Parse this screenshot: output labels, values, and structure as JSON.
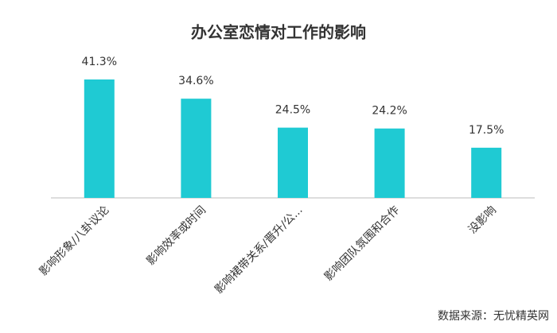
{
  "chart_data": {
    "type": "bar",
    "title": "办公室恋情对工作的影响",
    "categories": [
      "影响形象/八卦议论",
      "影响效率或时间",
      "影响裙带关系/晋升/公...",
      "影响团队氛围和合作",
      "没影响"
    ],
    "values": [
      41.3,
      34.6,
      24.5,
      24.2,
      17.5
    ],
    "value_labels": [
      "41.3%",
      "34.6%",
      "24.5%",
      "24.2%",
      "17.5%"
    ],
    "color": "#1fcad3",
    "source": "数据来源：无忧精英网"
  }
}
